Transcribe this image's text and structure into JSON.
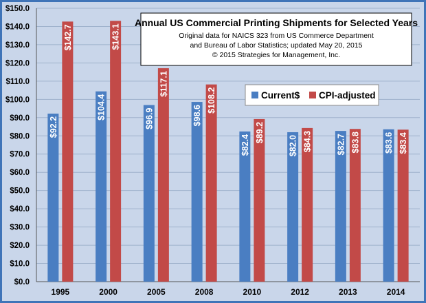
{
  "chart_data": {
    "type": "bar",
    "title": "Annual US Commercial Printing Shipments for Selected Years",
    "subtitle_lines": [
      "Original data for NAICS 323 from US Commerce Department",
      "and Bureau of Labor Statistics; updated May 20, 2015",
      "© 2015 Strategies for Management, Inc."
    ],
    "categories": [
      "1995",
      "2000",
      "2005",
      "2008",
      "2010",
      "2012",
      "2013",
      "2014"
    ],
    "series": [
      {
        "name": "Current$",
        "color": "#4a7ec2",
        "values": [
          92.2,
          104.4,
          96.9,
          98.6,
          82.4,
          82.0,
          82.7,
          83.6
        ],
        "labels": [
          "$92.2",
          "$104.4",
          "$96.9",
          "$98.6",
          "$82.4",
          "$82.0",
          "$82.7",
          "$83.6"
        ]
      },
      {
        "name": "CPI-adjusted",
        "color": "#c24a48",
        "values": [
          142.7,
          143.1,
          117.1,
          108.2,
          89.2,
          84.3,
          83.8,
          83.4
        ],
        "labels": [
          "$142.7",
          "$143.1",
          "$117.1",
          "$108.2",
          "$89.2",
          "$84.3",
          "$83.8",
          "$83.4"
        ]
      }
    ],
    "ylim": [
      0,
      150
    ],
    "yticks": [
      "$0.0",
      "$10.0",
      "$20.0",
      "$30.0",
      "$40.0",
      "$50.0",
      "$60.0",
      "$70.0",
      "$80.0",
      "$90.0",
      "$100.0",
      "$110.0",
      "$120.0",
      "$130.0",
      "$140.0",
      "$150.0"
    ],
    "xlabel": "",
    "ylabel": "",
    "grid": "horizontal",
    "legend_position": "upper-right, inside plot",
    "colors": {
      "background": "#c9d6ea",
      "border": "#3f74b8",
      "gridline": "#9fb2cc"
    }
  }
}
